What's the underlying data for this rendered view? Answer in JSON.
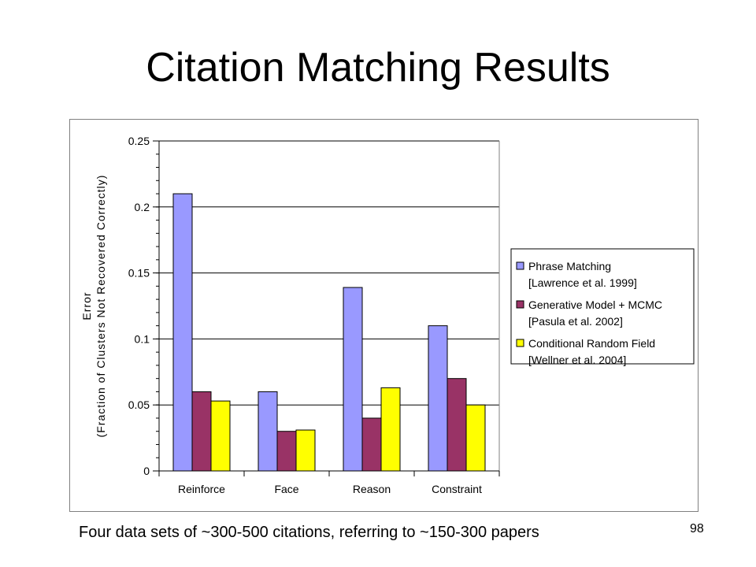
{
  "slide": {
    "title": "Citation Matching Results",
    "caption": "Four data sets of ~300-500 citations, referring to ~150-300 papers",
    "page_number": "98"
  },
  "chart_data": {
    "type": "bar",
    "categories": [
      "Reinforce",
      "Face",
      "Reason",
      "Constraint"
    ],
    "series": [
      {
        "name": "Phrase Matching [Lawrence et al. 1999]",
        "legend_lines": [
          "Phrase Matching",
          "[Lawrence et al. 1999]"
        ],
        "color": "#9999ff",
        "values": [
          0.21,
          0.06,
          0.139,
          0.11
        ]
      },
      {
        "name": "Generative Model + MCMC [Pasula et al. 2002]",
        "legend_lines": [
          "Generative Model + MCMC",
          "[Pasula et al. 2002]"
        ],
        "color": "#993366",
        "values": [
          0.06,
          0.03,
          0.04,
          0.07
        ]
      },
      {
        "name": "Conditional Random Field [Wellner et al. 2004]",
        "legend_lines": [
          "Conditional Random Field",
          "[Wellner et al. 2004]"
        ],
        "color": "#ffff00",
        "values": [
          0.053,
          0.031,
          0.063,
          0.05
        ]
      }
    ],
    "ylabel_lines": [
      "Error",
      "(Fraction of Clusters Not Recovered Correctly)"
    ],
    "ylim": [
      0,
      0.25
    ],
    "yticks": [
      0,
      0.05,
      0.1,
      0.15,
      0.2,
      0.25
    ],
    "ytick_labels": [
      "0",
      "0.05",
      "0.1",
      "0.15",
      "0.2",
      "0.25"
    ],
    "grid": true,
    "legend_position": "right"
  }
}
